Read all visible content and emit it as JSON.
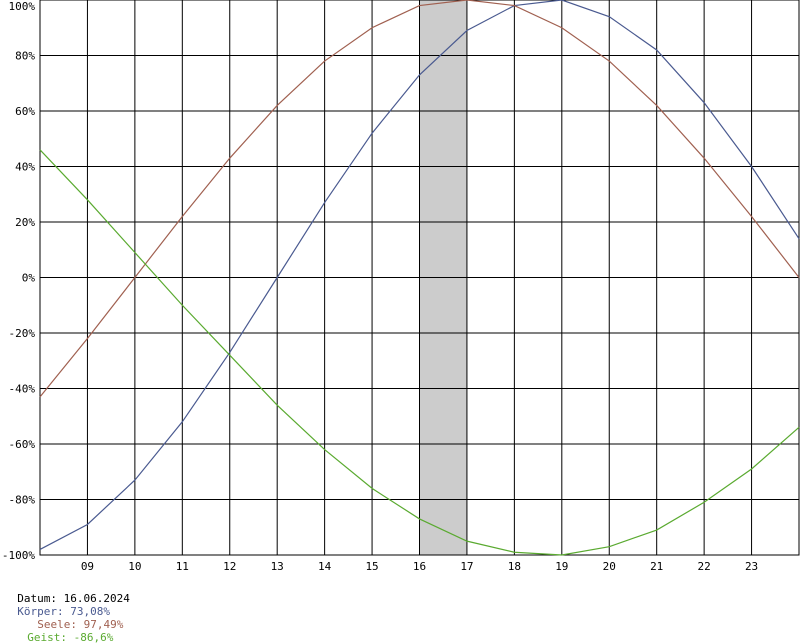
{
  "chart_data": {
    "type": "line",
    "x": [
      8,
      9,
      10,
      11,
      12,
      13,
      14,
      15,
      16,
      17,
      18,
      19,
      20,
      21,
      22,
      23,
      24
    ],
    "xtick_labels": [
      "09",
      "10",
      "11",
      "12",
      "13",
      "14",
      "15",
      "16",
      "17",
      "18",
      "19",
      "20",
      "21",
      "22",
      "23"
    ],
    "xtick_values": [
      9,
      10,
      11,
      12,
      13,
      14,
      15,
      16,
      17,
      18,
      19,
      20,
      21,
      22,
      23
    ],
    "xlim": [
      8,
      24
    ],
    "ylim": [
      -100,
      100
    ],
    "ytick_values": [
      100,
      80,
      60,
      40,
      20,
      0,
      -20,
      -40,
      -60,
      -80,
      -100
    ],
    "ytick_labels": [
      "100%",
      "80%",
      "60%",
      "40%",
      "20%",
      "0%",
      "-20%",
      "-40%",
      "-60%",
      "-80%",
      "-100%"
    ],
    "highlight_range": [
      16,
      17
    ],
    "grid": true,
    "series": [
      {
        "name": "Körper",
        "color": "#4a5a90",
        "values": [
          -98,
          -89,
          -73,
          -52,
          -27,
          0,
          27,
          52,
          73,
          89,
          98,
          100,
          94,
          82,
          63,
          40,
          14
        ]
      },
      {
        "name": "Seele",
        "color": "#a06050",
        "values": [
          -43,
          -22,
          0,
          22,
          43,
          62,
          78,
          90,
          98,
          100,
          98,
          90,
          78,
          62,
          43,
          22,
          0
        ]
      },
      {
        "name": "Geist",
        "color": "#5aaa30",
        "values": [
          46,
          28,
          9,
          -10,
          -28,
          -46,
          -62,
          -76,
          -87,
          -95,
          -99,
          -100,
          -97,
          -91,
          -81,
          -69,
          -54
        ]
      }
    ]
  },
  "footer": {
    "datum": "Datum: 16.06.2024",
    "koerper": "Körper: 73,08%",
    "seele": "Seele: 97,49%",
    "geist": "Geist: -86,6%"
  }
}
